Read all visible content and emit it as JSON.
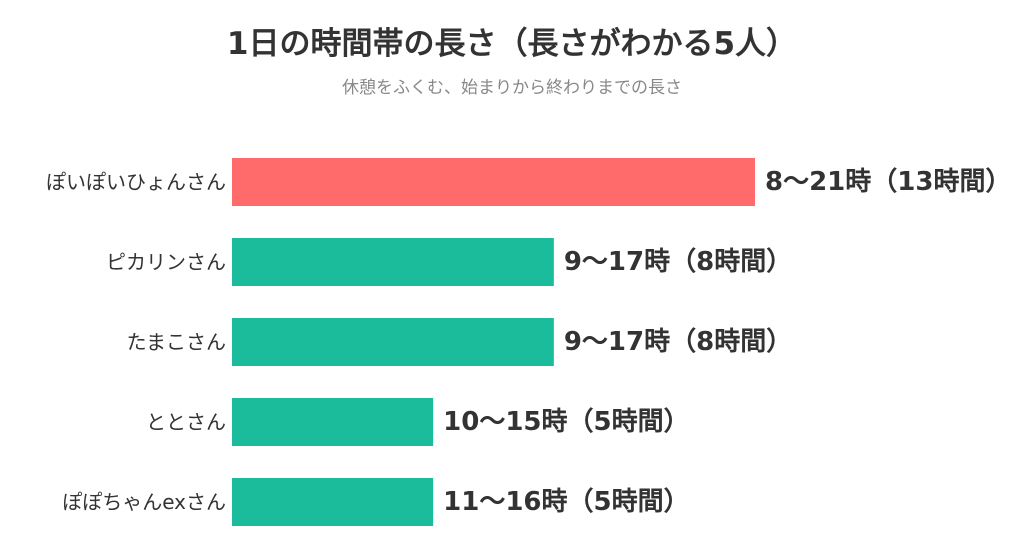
{
  "chart_data": {
    "type": "bar",
    "orientation": "horizontal",
    "title": "1日の時間帯の長さ（長さがわかる5人）",
    "subtitle": "休憩をふくむ、始まりから終わりまでの長さ",
    "xlabel": "",
    "ylabel": "",
    "grid": false,
    "legend": "none",
    "xlim": [
      0,
      13
    ],
    "unit": "時間",
    "categories": [
      "ぽいぽいひょんさん",
      "ピカリンさん",
      "たまこさん",
      "ととさん",
      "ぽぽちゃんexさん"
    ],
    "values": [
      13,
      8,
      8,
      5,
      5
    ],
    "data_labels": [
      "8〜21時（13時間）",
      "9〜17時（8時間）",
      "9〜17時（8時間）",
      "10〜15時（5時間）",
      "11〜16時（5時間）"
    ],
    "highlight_index": 0,
    "colors": {
      "highlight": "#ff6b6b",
      "default": "#1abc9c"
    }
  }
}
